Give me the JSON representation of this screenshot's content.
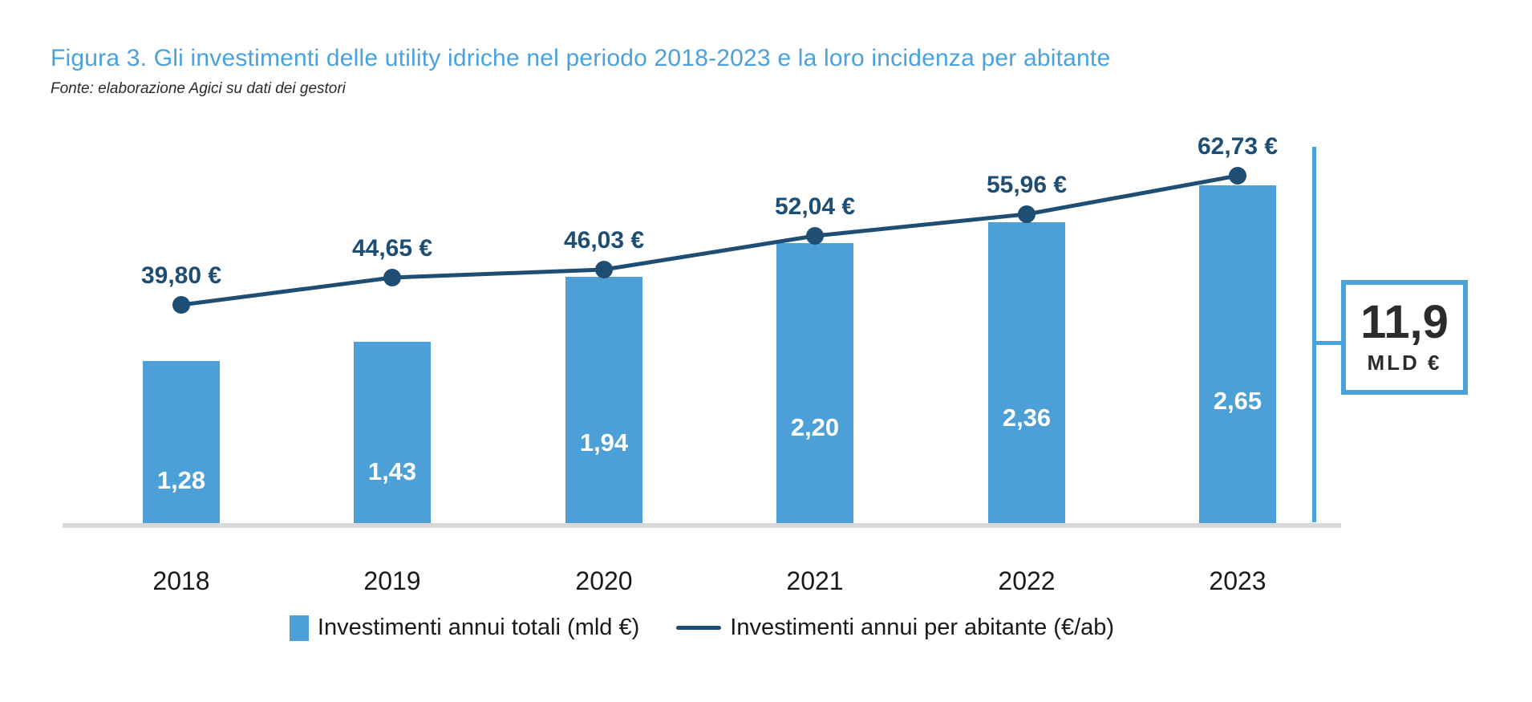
{
  "figure": {
    "title": "Figura 3. Gli investimenti delle utility idriche nel periodo 2018-2023 e la loro incidenza per abitante",
    "source": "Fonte: elaborazione Agici su dati dei gestori"
  },
  "chart_data": {
    "type": "bar+line",
    "categories": [
      "2018",
      "2019",
      "2020",
      "2021",
      "2022",
      "2023"
    ],
    "series": [
      {
        "name": "Investimenti annui totali (mld €)",
        "type": "bar",
        "values": [
          1.28,
          1.43,
          1.94,
          2.2,
          2.36,
          2.65
        ],
        "labels": [
          "1,28",
          "1,43",
          "1,94",
          "2,20",
          "2,36",
          "2,65"
        ],
        "color": "#4D9FD7",
        "label_color": "#FFFFFF"
      },
      {
        "name": "Investimenti annui per abitante (€/ab)",
        "type": "line",
        "values": [
          39.8,
          44.65,
          46.03,
          52.04,
          55.96,
          62.73
        ],
        "labels": [
          "39,80 €",
          "44,65 €",
          "46,03 €",
          "52,04 €",
          "55,96 €",
          "62,73 €"
        ],
        "color": "#1E4E74"
      }
    ],
    "annotation": {
      "label": "11,9",
      "unit": "MLD €"
    },
    "legend_position": "bottom",
    "grid": false,
    "x_axis": {
      "labels_visible": true
    },
    "y_axis": {
      "visible": false
    }
  },
  "colors": {
    "title_blue": "#4AA1DC",
    "bar_blue": "#4D9FD7",
    "line_dark_blue": "#1E4E74",
    "axis_gray": "#D9D9D9",
    "text_dark": "#1A1A1A",
    "annotation_border_blue": "#4AA1DC",
    "annotation_text": "#2B2B2B",
    "background": "#FFFFFF"
  }
}
